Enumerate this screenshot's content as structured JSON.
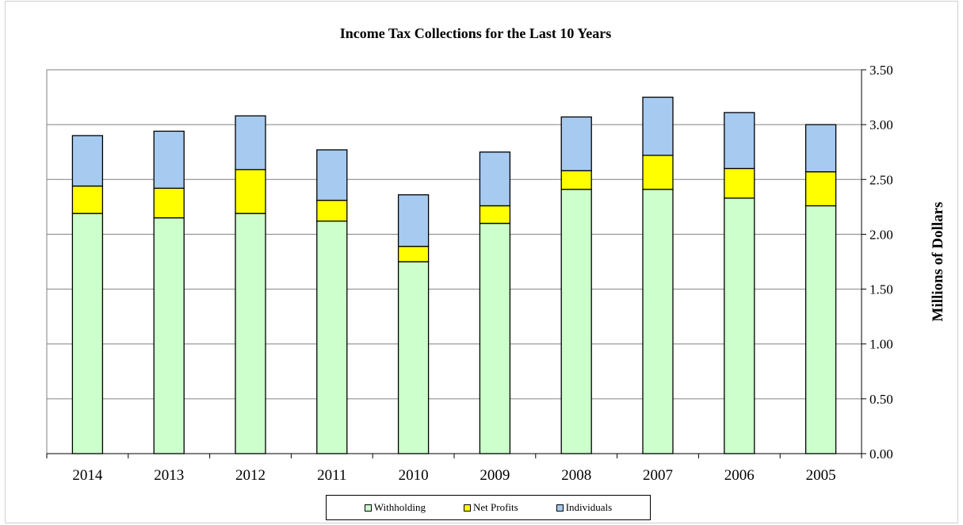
{
  "chart_data": {
    "type": "bar",
    "stacked": true,
    "title": "Income Tax Collections for the Last 10 Years",
    "ylabel": "Millions of Dollars",
    "xlabel": "",
    "ylim": [
      0,
      3.5
    ],
    "y_ticks": [
      "0.00",
      "0.50",
      "1.00",
      "1.50",
      "2.00",
      "2.50",
      "3.00",
      "3.50"
    ],
    "y_tick_values": [
      0,
      0.5,
      1,
      1.5,
      2,
      2.5,
      3,
      3.5
    ],
    "y_axis_side": "right",
    "grid": true,
    "legend_position": "bottom",
    "categories": [
      "2014",
      "2013",
      "2012",
      "2011",
      "2010",
      "2009",
      "2008",
      "2007",
      "2006",
      "2005"
    ],
    "series": [
      {
        "name": "Withholding",
        "color": "#ccffcc",
        "values": [
          2.19,
          2.15,
          2.19,
          2.12,
          1.75,
          2.1,
          2.41,
          2.41,
          2.33,
          2.26
        ]
      },
      {
        "name": "Net Profits",
        "color": "#ffff00",
        "values": [
          0.25,
          0.27,
          0.4,
          0.19,
          0.14,
          0.16,
          0.17,
          0.31,
          0.27,
          0.31
        ]
      },
      {
        "name": "Individuals",
        "color": "#a6caf0",
        "values": [
          0.46,
          0.52,
          0.49,
          0.46,
          0.47,
          0.49,
          0.49,
          0.53,
          0.51,
          0.43
        ]
      }
    ]
  }
}
